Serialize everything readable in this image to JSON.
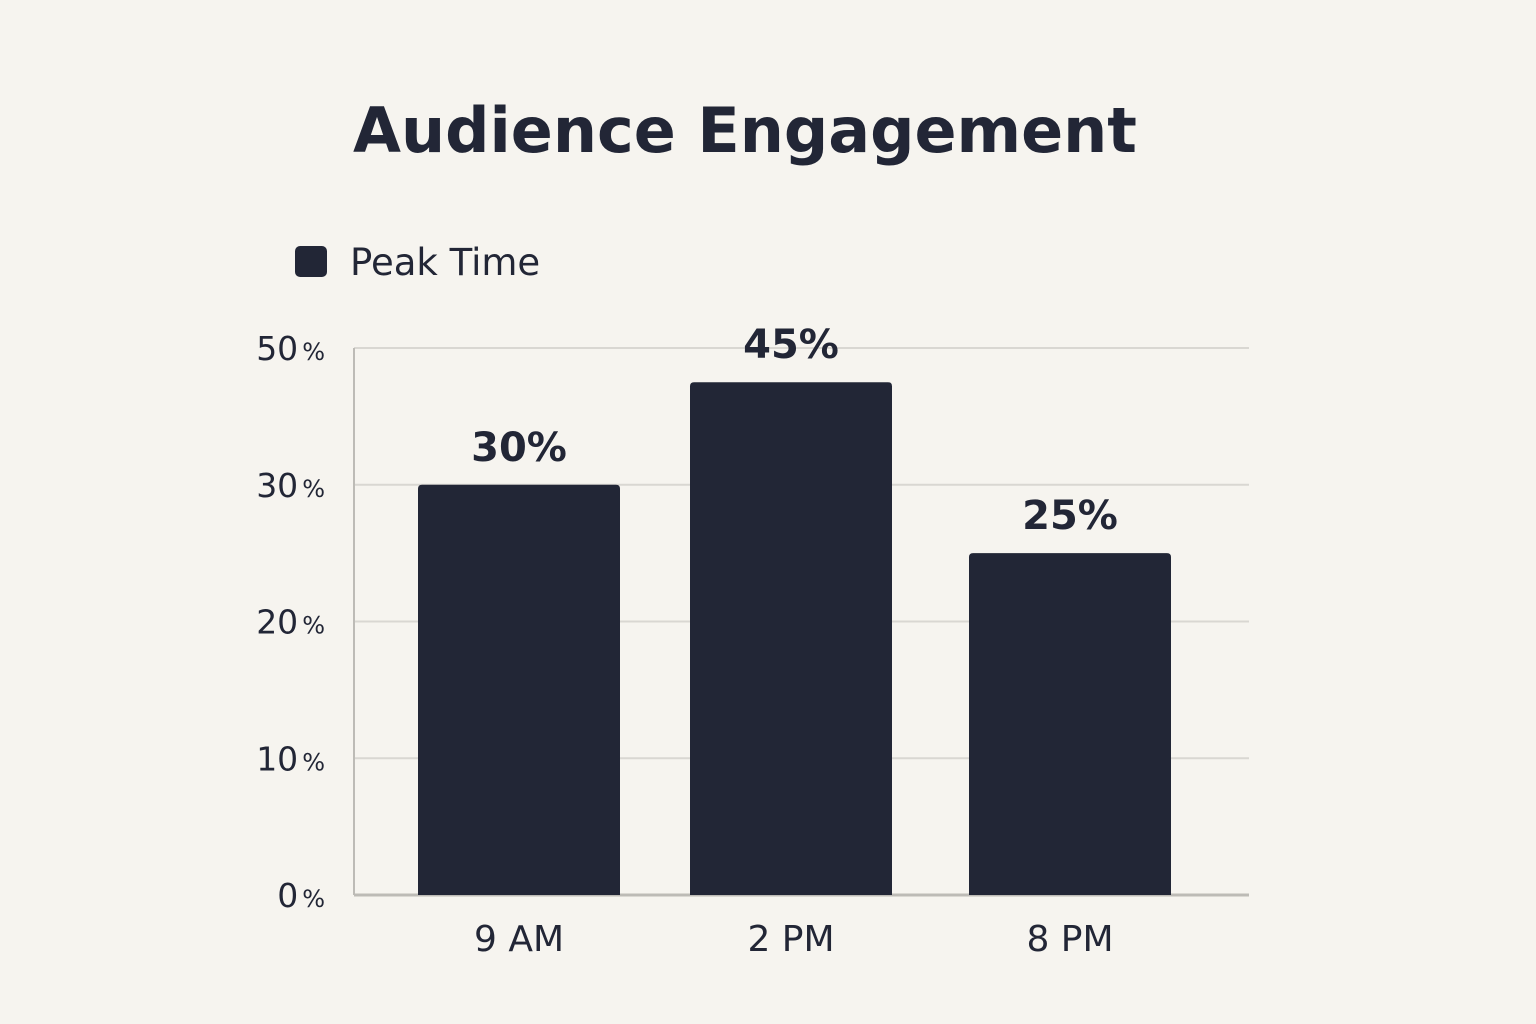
{
  "chart_data": {
    "type": "bar",
    "title": "Audience Engagement",
    "legend": {
      "entries": [
        "Peak Time"
      ],
      "placement": "top-left"
    },
    "categories": [
      "9 AM",
      "2 PM",
      "8 PM"
    ],
    "series": [
      {
        "name": "Peak Time",
        "values": [
          30,
          45,
          25
        ],
        "labels": [
          "30%",
          "45%",
          "25%"
        ]
      }
    ],
    "yticks": [
      {
        "value": 0,
        "num": "0",
        "unit": "%"
      },
      {
        "value": 10,
        "num": "10",
        "unit": "%"
      },
      {
        "value": 20,
        "num": "20",
        "unit": "%"
      },
      {
        "value": 30,
        "num": "30",
        "unit": "%"
      },
      {
        "value": 50,
        "num": "50",
        "unit": "%"
      }
    ],
    "ylim": [
      0,
      50
    ],
    "grid": true,
    "xlabel": "",
    "ylabel": "",
    "colors": {
      "bar": "#222636",
      "background": "#f6f4ef",
      "grid": "#d9d7d2",
      "axis": "#bdbbb6"
    }
  }
}
